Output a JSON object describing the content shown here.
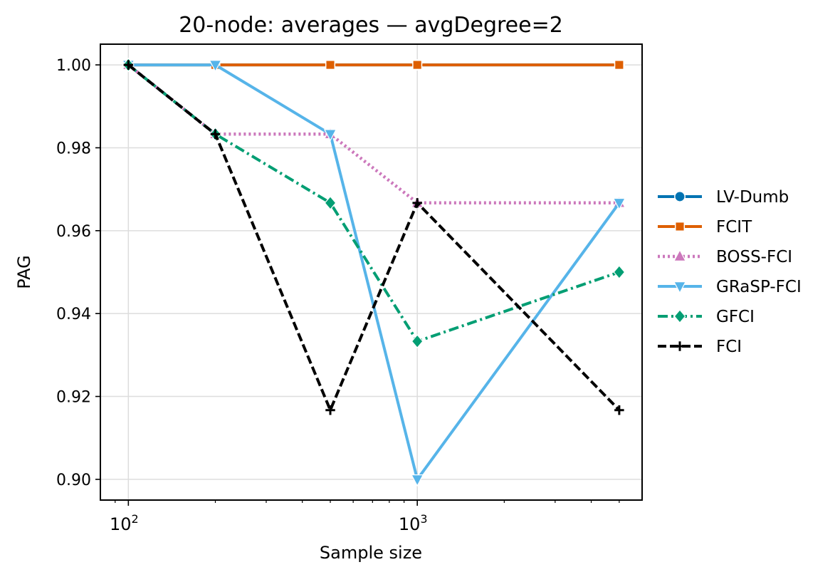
{
  "chart_data": {
    "type": "line",
    "title": "20-node: averages — avgDegree=2",
    "xlabel": "Sample size",
    "ylabel": "PAG",
    "xscale": "log",
    "x": [
      100,
      200,
      500,
      1000,
      5000
    ],
    "xlim": [
      80,
      6000
    ],
    "ylim": [
      0.895,
      1.005
    ],
    "yticks": [
      "0.90",
      "0.92",
      "0.94",
      "0.96",
      "0.98",
      "1.00"
    ],
    "xticks": [
      {
        "base": "10",
        "exp": "2"
      },
      {
        "base": "10",
        "exp": "3"
      }
    ],
    "grid": true,
    "legend_position": "right",
    "series": [
      {
        "name": "LV-Dumb",
        "values": [
          1.0,
          1.0,
          1.0,
          1.0,
          1.0
        ],
        "color": "#0173b2",
        "marker": "circle",
        "dash": "solid"
      },
      {
        "name": "FCIT",
        "values": [
          1.0,
          1.0,
          1.0,
          1.0,
          1.0
        ],
        "color": "#de5f00",
        "marker": "square",
        "dash": "solid"
      },
      {
        "name": "BOSS-FCI",
        "values": [
          1.0,
          0.9833,
          0.9833,
          0.9667,
          0.9667
        ],
        "color": "#cc78bc",
        "marker": "triangle-up",
        "dash": "dotted"
      },
      {
        "name": "GRaSP-FCI",
        "values": [
          1.0,
          1.0,
          0.9833,
          0.9,
          0.9667
        ],
        "color": "#56b4e9",
        "marker": "triangle-down",
        "dash": "solid"
      },
      {
        "name": "GFCI",
        "values": [
          1.0,
          0.9833,
          0.9667,
          0.9333,
          0.95
        ],
        "color": "#029e73",
        "marker": "diamond",
        "dash": "dashdot"
      },
      {
        "name": "FCI",
        "values": [
          1.0,
          0.9833,
          0.9167,
          0.9667,
          0.9167
        ],
        "color": "#000000",
        "marker": "plus",
        "dash": "dashed"
      }
    ]
  }
}
